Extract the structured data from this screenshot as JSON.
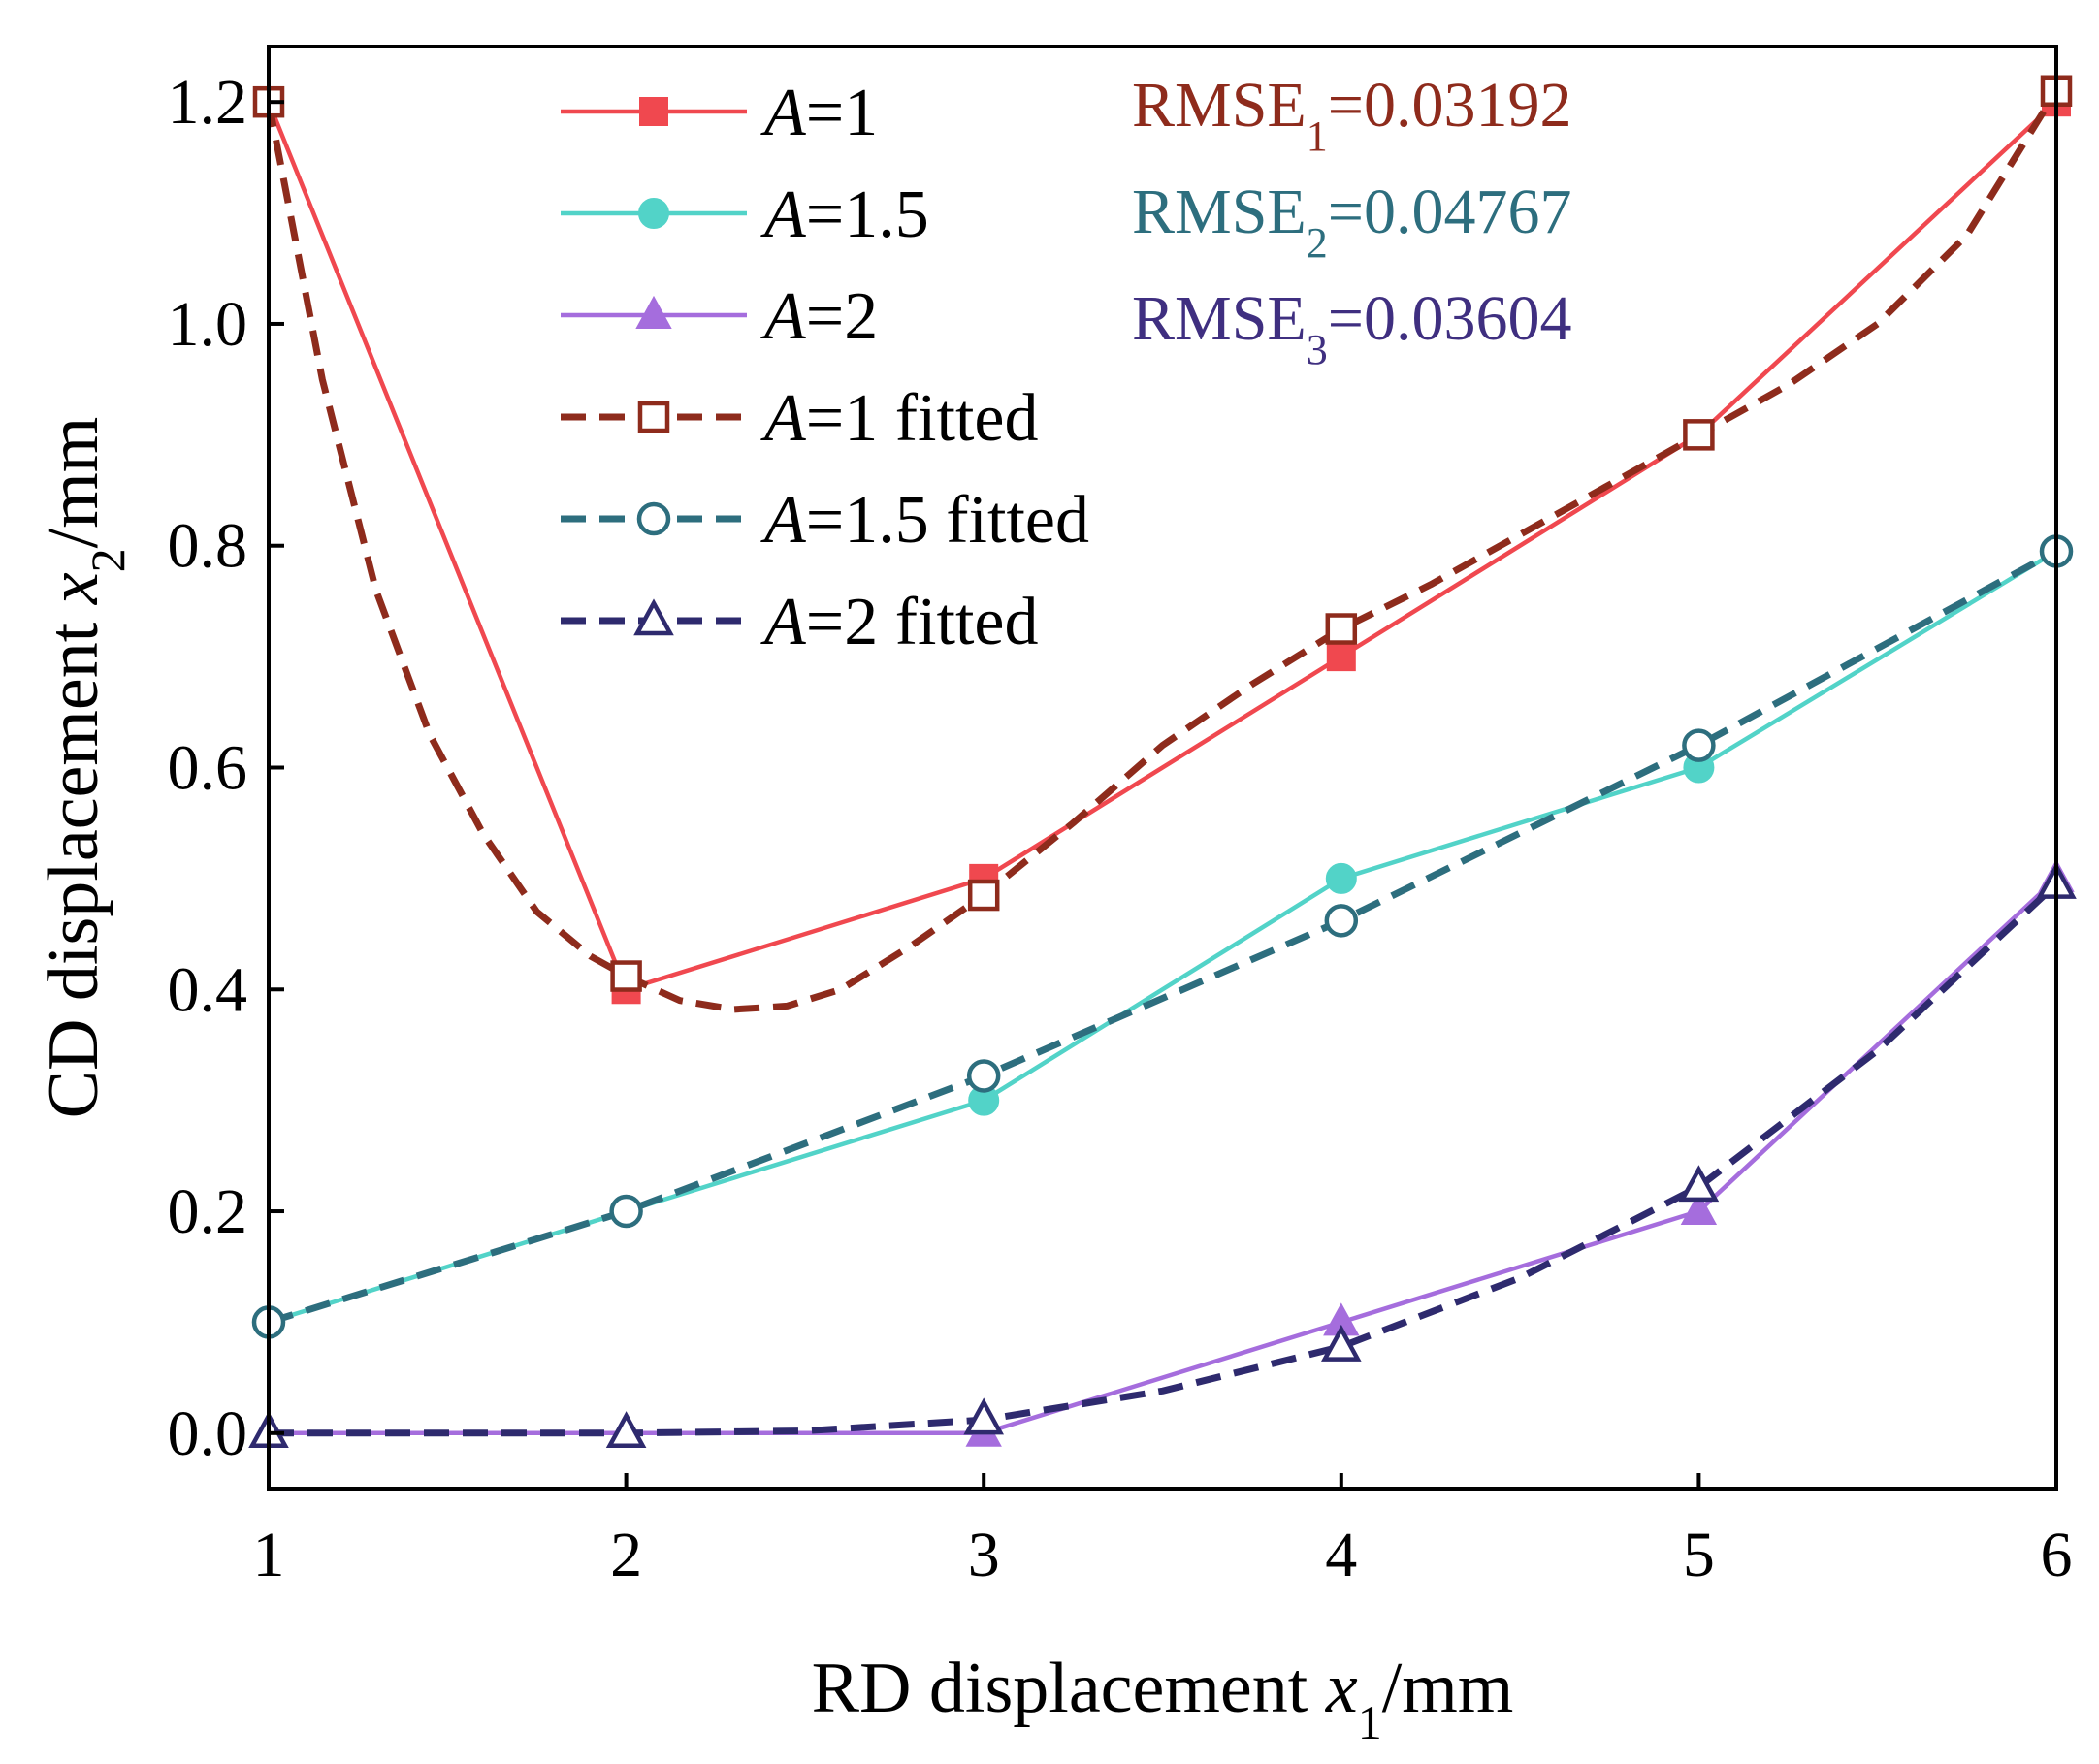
{
  "chart_data": {
    "type": "line",
    "x": [
      1,
      2,
      3,
      4,
      5,
      6
    ],
    "xlim": [
      1,
      6
    ],
    "ylim": [
      -0.05,
      1.25
    ],
    "xticks": [
      1,
      2,
      3,
      4,
      5,
      6
    ],
    "xtick_labels": [
      "1",
      "2",
      "3",
      "4",
      "5",
      "6"
    ],
    "yticks": [
      0.0,
      0.2,
      0.4,
      0.6,
      0.8,
      1.0,
      1.2
    ],
    "ytick_labels": [
      "0.0",
      "0.2",
      "0.4",
      "0.6",
      "0.8",
      "1.0",
      "1.2"
    ],
    "xlabel": {
      "prefix": "RD displacement ",
      "var": "x",
      "sub": "1",
      "suffix": "/mm"
    },
    "ylabel": {
      "prefix": "CD displacement ",
      "var": "x",
      "sub": "2",
      "suffix": "/mm"
    },
    "grid": false,
    "legend_position": "top-left",
    "series": [
      {
        "legend_var": "A",
        "legend_rest": "=1",
        "values": [
          1.2,
          0.4,
          0.5,
          0.7,
          0.9,
          1.2
        ],
        "color": "#f0484f",
        "style": "solid",
        "marker": "square",
        "filled": true
      },
      {
        "legend_var": "A",
        "legend_rest": "=1.5",
        "values": [
          0.1,
          0.2,
          0.3,
          0.5,
          0.6,
          0.795
        ],
        "color": "#52d3c8",
        "style": "solid",
        "marker": "circle",
        "filled": true
      },
      {
        "legend_var": "A",
        "legend_rest": "=2",
        "values": [
          0.0,
          0.0,
          0.0,
          0.1,
          0.2,
          0.5
        ],
        "color": "#a56ddd",
        "style": "solid",
        "marker": "triangle",
        "filled": true
      },
      {
        "legend_var": "A",
        "legend_rest": "=1 fitted",
        "values": [
          1.2,
          0.412,
          0.485,
          0.725,
          0.9,
          1.21
        ],
        "color": "#8e2b1c",
        "style": "dashed",
        "marker": "square",
        "filled": false,
        "smooth": true,
        "curve": [
          [
            1.0,
            1.2
          ],
          [
            1.15,
            0.95
          ],
          [
            1.3,
            0.76
          ],
          [
            1.45,
            0.63
          ],
          [
            1.6,
            0.54
          ],
          [
            1.75,
            0.47
          ],
          [
            1.9,
            0.43
          ],
          [
            2.0,
            0.412
          ],
          [
            2.15,
            0.39
          ],
          [
            2.3,
            0.382
          ],
          [
            2.45,
            0.385
          ],
          [
            2.6,
            0.4
          ],
          [
            2.8,
            0.44
          ],
          [
            3.0,
            0.485
          ],
          [
            3.25,
            0.55
          ],
          [
            3.5,
            0.62
          ],
          [
            3.75,
            0.675
          ],
          [
            4.0,
            0.725
          ],
          [
            4.25,
            0.765
          ],
          [
            4.5,
            0.81
          ],
          [
            4.75,
            0.855
          ],
          [
            5.0,
            0.9
          ],
          [
            5.25,
            0.945
          ],
          [
            5.5,
            1.0
          ],
          [
            5.75,
            1.08
          ],
          [
            6.0,
            1.21
          ]
        ]
      },
      {
        "legend_var": "A",
        "legend_rest": "=1.5 fitted",
        "values": [
          0.1,
          0.2,
          0.322,
          0.462,
          0.62,
          0.795
        ],
        "color": "#2d6e7e",
        "style": "dashed",
        "marker": "circle",
        "filled": false
      },
      {
        "legend_var": "A",
        "legend_rest": "=2 fitted",
        "values": [
          0.0,
          0.0,
          0.012,
          0.078,
          0.222,
          0.495
        ],
        "color": "#2e2a6e",
        "style": "dashed",
        "marker": "triangle",
        "filled": false,
        "smooth": true,
        "curve": [
          [
            1.0,
            0.0
          ],
          [
            2.0,
            0.0
          ],
          [
            2.5,
            0.002
          ],
          [
            3.0,
            0.012
          ],
          [
            3.5,
            0.038
          ],
          [
            4.0,
            0.078
          ],
          [
            4.5,
            0.14
          ],
          [
            5.0,
            0.222
          ],
          [
            5.5,
            0.345
          ],
          [
            6.0,
            0.495
          ]
        ]
      }
    ],
    "annotations": [
      {
        "base": "RMSE",
        "sub": "1",
        "rest": "=0.03192",
        "color": "#8e2b1c"
      },
      {
        "base": "RMSE",
        "sub": "2",
        "rest": "=0.04767",
        "color": "#2d6e7e"
      },
      {
        "base": "RMSE",
        "sub": "3",
        "rest": "=0.03604",
        "color": "#3f2f80"
      }
    ]
  }
}
